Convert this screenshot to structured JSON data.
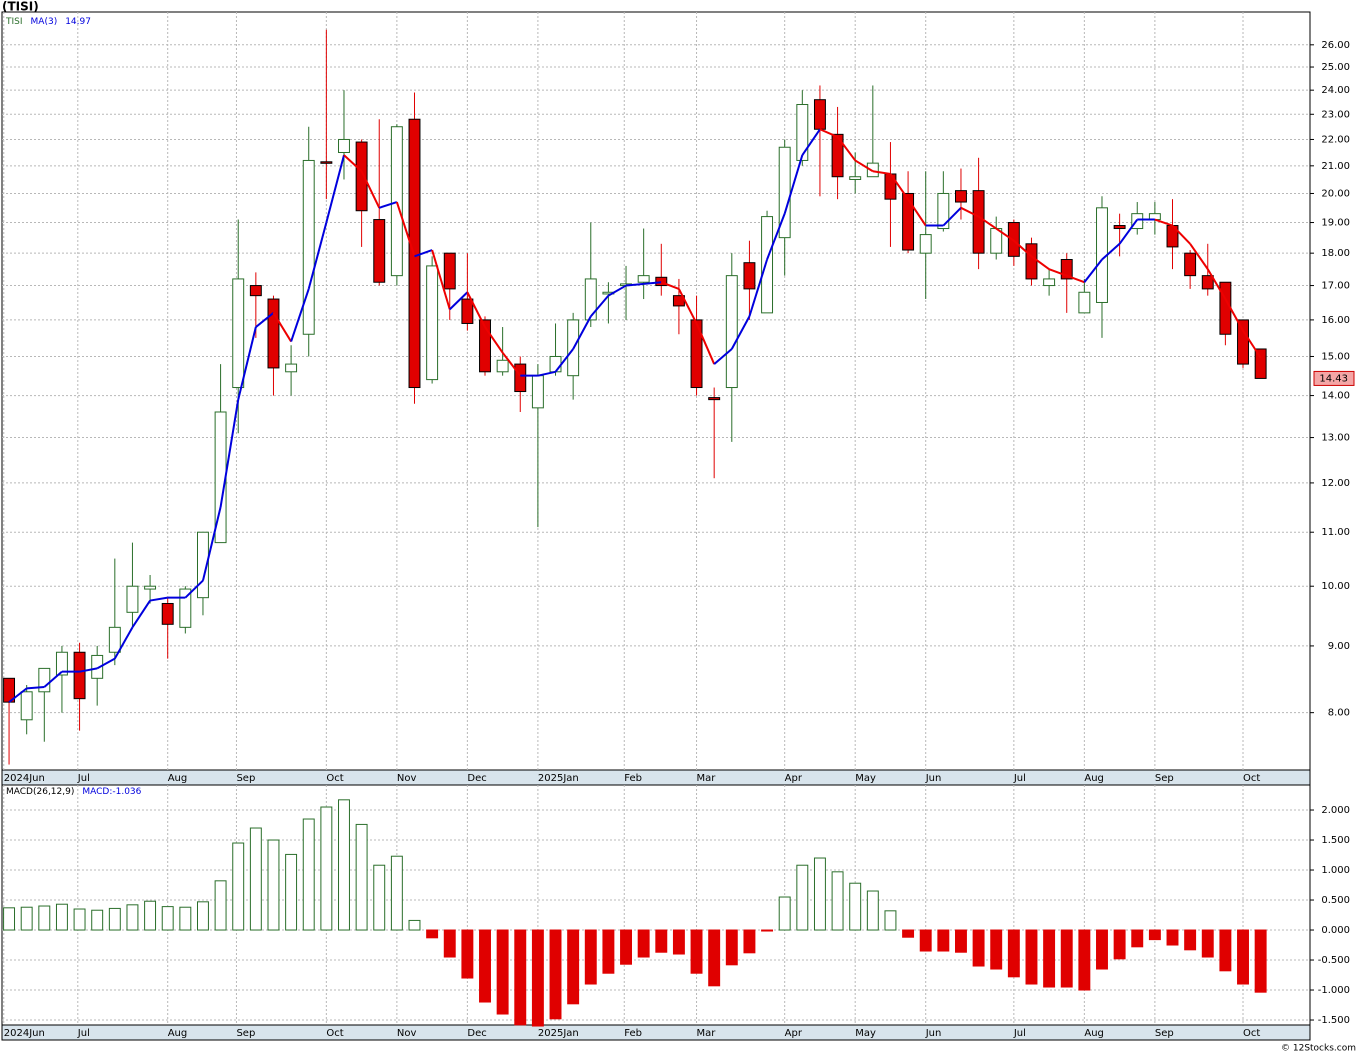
{
  "chart_data": [
    {
      "type": "candlestick",
      "title": "(TISI)",
      "symbol": "TISI",
      "ylim": [
        7.23,
        27.55
      ],
      "log_scale": true,
      "grid": true,
      "xlim": [
        -0.4,
        73.8
      ],
      "xticks": [
        {
          "value": -0.3,
          "label": "2024Jun"
        },
        {
          "value": 3.9,
          "label": "Jul"
        },
        {
          "value": 9.0,
          "label": "Aug"
        },
        {
          "value": 12.9,
          "label": "Sep"
        },
        {
          "value": 18.0,
          "label": "Oct"
        },
        {
          "value": 22.0,
          "label": "Nov"
        },
        {
          "value": 26.0,
          "label": "Dec"
        },
        {
          "value": 30.0,
          "label": "2025Jan"
        },
        {
          "value": 34.9,
          "label": "Feb"
        },
        {
          "value": 39.0,
          "label": "Mar"
        },
        {
          "value": 44.0,
          "label": "Apr"
        },
        {
          "value": 48.0,
          "label": "May"
        },
        {
          "value": 52.0,
          "label": "Jun"
        },
        {
          "value": 57.0,
          "label": "Jul"
        },
        {
          "value": 61.0,
          "label": "Aug"
        },
        {
          "value": 65.0,
          "label": "Sep"
        },
        {
          "value": 70.0,
          "label": "Oct"
        }
      ],
      "yticks": [
        {
          "value": 8,
          "label": "8.00"
        },
        {
          "value": 9,
          "label": "9.00"
        },
        {
          "value": 10,
          "label": "10.00"
        },
        {
          "value": 11,
          "label": "11.00"
        },
        {
          "value": 12,
          "label": "12.00"
        },
        {
          "value": 13,
          "label": "13.00"
        },
        {
          "value": 14,
          "label": "14.00"
        },
        {
          "value": 15,
          "label": "15.00"
        },
        {
          "value": 16,
          "label": "16.00"
        },
        {
          "value": 17,
          "label": "17.00"
        },
        {
          "value": 18,
          "label": "18.00"
        },
        {
          "value": 19,
          "label": "19.00"
        },
        {
          "value": 20,
          "label": "20.00"
        },
        {
          "value": 21,
          "label": "21.00"
        },
        {
          "value": 22,
          "label": "22.00"
        },
        {
          "value": 23,
          "label": "23.00"
        },
        {
          "value": 24,
          "label": "24.00"
        },
        {
          "value": 25,
          "label": "25.00"
        },
        {
          "value": 26,
          "label": "26.00"
        }
      ],
      "up_color": "#2a6e2a",
      "down_color": "#e00000",
      "open": [
        8.5,
        7.9,
        8.3,
        8.55,
        8.9,
        8.5,
        8.9,
        9.55,
        9.95,
        9.7,
        9.3,
        9.8,
        10.8,
        14.2,
        17.0,
        16.6,
        14.6,
        15.6,
        21.15,
        21.5,
        21.9,
        19.1,
        17.3,
        22.8,
        14.4,
        18.0,
        16.6,
        16.0,
        14.6,
        14.8,
        13.7,
        14.6,
        14.5,
        16.0,
        16.75,
        17.0,
        17.1,
        17.25,
        16.7,
        16.0,
        13.95,
        14.2,
        17.7,
        16.2,
        18.5,
        21.2,
        23.6,
        22.2,
        20.5,
        20.6,
        20.7,
        20.0,
        18.0,
        18.8,
        20.1,
        20.1,
        18.0,
        19.0,
        18.3,
        17.0,
        17.8,
        16.2,
        16.5,
        18.9,
        18.8,
        19.1,
        18.9,
        18.0,
        17.3,
        17.1,
        16.0,
        15.2
      ],
      "high": [
        8.5,
        8.4,
        8.65,
        9.0,
        9.05,
        9.0,
        10.5,
        10.8,
        10.2,
        9.8,
        10.0,
        11.0,
        14.8,
        19.1,
        17.4,
        16.7,
        15.3,
        22.5,
        26.7,
        24.0,
        22.0,
        22.8,
        22.6,
        23.9,
        17.9,
        18.0,
        18.0,
        16.1,
        15.8,
        15.0,
        14.8,
        15.9,
        16.2,
        19.0,
        17.1,
        17.6,
        18.8,
        18.3,
        17.2,
        16.7,
        14.2,
        18.0,
        18.4,
        19.4,
        22.0,
        24.0,
        24.2,
        23.3,
        21.5,
        24.2,
        21.9,
        20.8,
        20.8,
        20.8,
        20.9,
        21.3,
        19.2,
        19.1,
        18.5,
        17.5,
        18.0,
        17.2,
        19.9,
        19.3,
        19.7,
        19.7,
        19.8,
        18.1,
        18.3,
        17.1,
        16.0,
        15.2
      ],
      "low": [
        7.3,
        7.7,
        7.6,
        8.0,
        7.75,
        8.1,
        8.7,
        9.3,
        9.7,
        8.8,
        9.2,
        9.5,
        10.8,
        13.1,
        15.5,
        14.0,
        14.0,
        15.0,
        19.8,
        20.5,
        18.2,
        17.0,
        17.0,
        13.8,
        14.3,
        16.0,
        15.7,
        14.5,
        14.5,
        13.6,
        11.1,
        14.5,
        13.9,
        15.8,
        15.9,
        16.0,
        16.6,
        16.7,
        15.6,
        14.0,
        12.1,
        12.9,
        16.0,
        16.2,
        17.3,
        21.0,
        19.9,
        19.8,
        20.0,
        20.6,
        18.2,
        18.0,
        16.6,
        18.7,
        19.1,
        17.5,
        17.8,
        17.6,
        17.0,
        16.7,
        16.2,
        16.2,
        15.5,
        17.9,
        18.6,
        18.6,
        17.5,
        16.9,
        16.7,
        15.3,
        14.7,
        14.43
      ],
      "close": [
        8.15,
        8.3,
        8.65,
        8.9,
        8.2,
        8.85,
        9.3,
        10.0,
        10.0,
        9.35,
        9.95,
        11.0,
        13.6,
        17.2,
        16.7,
        14.7,
        14.8,
        21.2,
        21.1,
        22.0,
        19.4,
        17.1,
        22.5,
        14.2,
        17.6,
        16.9,
        15.9,
        14.6,
        14.9,
        14.1,
        14.5,
        15.0,
        16.0,
        17.2,
        16.8,
        17.05,
        17.3,
        17.0,
        16.4,
        14.2,
        13.9,
        17.3,
        16.9,
        19.2,
        21.7,
        23.4,
        22.4,
        20.6,
        20.6,
        21.1,
        19.8,
        18.1,
        18.6,
        20.0,
        19.7,
        18.0,
        18.8,
        17.9,
        17.2,
        17.2,
        17.2,
        16.8,
        19.5,
        18.8,
        19.3,
        19.3,
        18.2,
        17.3,
        16.9,
        15.6,
        14.8,
        14.43
      ],
      "ma": {
        "name": "MA(3)",
        "up_color": "#0000dd",
        "down_color": "#ee0000",
        "values": [
          8.15,
          8.35,
          8.37,
          8.6,
          8.6,
          8.65,
          8.8,
          9.3,
          9.75,
          9.8,
          9.8,
          10.1,
          11.5,
          13.9,
          15.8,
          16.2,
          15.4,
          16.9,
          19.0,
          21.4,
          20.8,
          19.5,
          19.7,
          17.9,
          18.1,
          16.3,
          16.8,
          15.8,
          15.1,
          14.5,
          14.5,
          14.6,
          15.2,
          16.1,
          16.7,
          17.0,
          17.05,
          17.1,
          16.9,
          15.9,
          14.8,
          15.2,
          16.1,
          17.8,
          19.3,
          21.4,
          22.4,
          22.1,
          21.2,
          20.8,
          20.7,
          19.8,
          18.9,
          18.9,
          19.5,
          19.2,
          18.8,
          18.4,
          17.9,
          17.5,
          17.3,
          17.1,
          17.8,
          18.3,
          19.1,
          19.1,
          18.9,
          18.3,
          17.5,
          16.6,
          15.7,
          14.97
        ]
      }
    },
    {
      "type": "histogram-bar",
      "title": "MACD(26,12,9)",
      "value_title": "MACD:",
      "ylim": [
        -1.583,
        2.417
      ],
      "grid": true,
      "up_color": "#2a6e2a",
      "down_color": "#e00000",
      "yticks": [
        {
          "value": 2,
          "label": "2.000"
        },
        {
          "value": 1.5,
          "label": "1.500"
        },
        {
          "value": 1,
          "label": "1.000"
        },
        {
          "value": 0.5,
          "label": "0.500"
        },
        {
          "value": 0,
          "label": "0.000"
        },
        {
          "value": -0.5,
          "label": "-0.500"
        },
        {
          "value": -1,
          "label": "-1.000"
        },
        {
          "value": -1.5,
          "label": "-1.500"
        }
      ],
      "values": [
        0.37,
        0.38,
        0.4,
        0.43,
        0.35,
        0.33,
        0.36,
        0.42,
        0.48,
        0.39,
        0.38,
        0.47,
        0.82,
        1.45,
        1.7,
        1.5,
        1.26,
        1.85,
        2.05,
        2.17,
        1.76,
        1.08,
        1.23,
        0.16,
        -0.13,
        -0.45,
        -0.8,
        -1.2,
        -1.4,
        -1.58,
        -1.6,
        -1.48,
        -1.23,
        -0.9,
        -0.72,
        -0.57,
        -0.45,
        -0.37,
        -0.4,
        -0.72,
        -0.93,
        -0.58,
        -0.38,
        -0.01,
        0.55,
        1.08,
        1.2,
        0.97,
        0.78,
        0.65,
        0.32,
        -0.12,
        -0.35,
        -0.35,
        -0.37,
        -0.6,
        -0.65,
        -0.78,
        -0.9,
        -0.95,
        -0.95,
        -1.0,
        -0.65,
        -0.48,
        -0.28,
        -0.16,
        -0.25,
        -0.33,
        -0.45,
        -0.68,
        -0.9,
        -1.036
      ]
    },
    {
      "type": "footer",
      "credit": "© 12Stocks.com"
    }
  ]
}
